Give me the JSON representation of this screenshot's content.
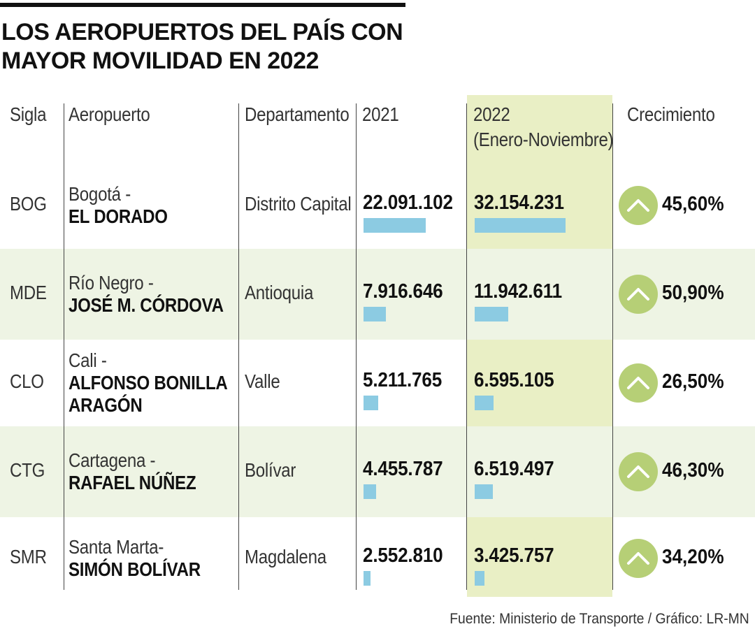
{
  "title": [
    "LOS AEROPUERTOS DEL PAÍS CON",
    "MAYOR MOVILIDAD EN 2022"
  ],
  "headers": {
    "sigla": "Sigla",
    "aeropuerto": "Aeropuerto",
    "departamento": "Departamento",
    "y2021": "2021",
    "y2022_line1": "2022",
    "y2022_line2": "(Enero-Noviembre)",
    "crecimiento": "Crecimiento"
  },
  "colors": {
    "highlight_column": "#e9efc5",
    "row_band": "#eef4e4",
    "bar": "#8ccbe2",
    "growth_badge": "#b6cf76"
  },
  "icons": {
    "growth": "chevron-up-icon"
  },
  "chart_data": {
    "type": "table",
    "columns": [
      "Sigla",
      "Aeropuerto",
      "Departamento",
      "2021",
      "2022 (Enero-Noviembre)",
      "Crecimiento"
    ],
    "rows": [
      {
        "sigla": "BOG",
        "city": "Bogotá -",
        "name_lines": [
          "EL DORADO"
        ],
        "departamento": "Distrito Capital",
        "v2021_label": "22.091.102",
        "v2022_label": "32.154.231",
        "v2021": 22091102,
        "v2022": 32154231,
        "growth": "45,60%"
      },
      {
        "sigla": "MDE",
        "city": "Río Negro -",
        "name_lines": [
          "JOSÉ M. CÓRDOVA"
        ],
        "departamento": "Antioquia",
        "v2021_label": "7.916.646",
        "v2022_label": "11.942.611",
        "v2021": 7916646,
        "v2022": 11942611,
        "growth": "50,90%"
      },
      {
        "sigla": "CLO",
        "city": "Cali -",
        "name_lines": [
          "ALFONSO BONILLA",
          "ARAGÓN"
        ],
        "departamento": "Valle",
        "v2021_label": "5.211.765",
        "v2022_label": "6.595.105",
        "v2021": 5211765,
        "v2022": 6595105,
        "growth": "26,50%"
      },
      {
        "sigla": "CTG",
        "city": "Cartagena -",
        "name_lines": [
          "RAFAEL NÚÑEZ"
        ],
        "departamento": "Bolívar",
        "v2021_label": "4.455.787",
        "v2022_label": "6.519.497",
        "v2021": 4455787,
        "v2022": 6519497,
        "growth": "46,30%"
      },
      {
        "sigla": "SMR",
        "city": "Santa Marta-",
        "name_lines": [
          "SIMÓN BOLÍVAR"
        ],
        "departamento": "Magdalena",
        "v2021_label": "2.552.810",
        "v2022_label": "3.425.757",
        "v2021": 2552810,
        "v2022": 3425757,
        "growth": "34,20%"
      }
    ]
  },
  "source": "Fuente: Ministerio de Transporte / Gráfico: LR-MN"
}
